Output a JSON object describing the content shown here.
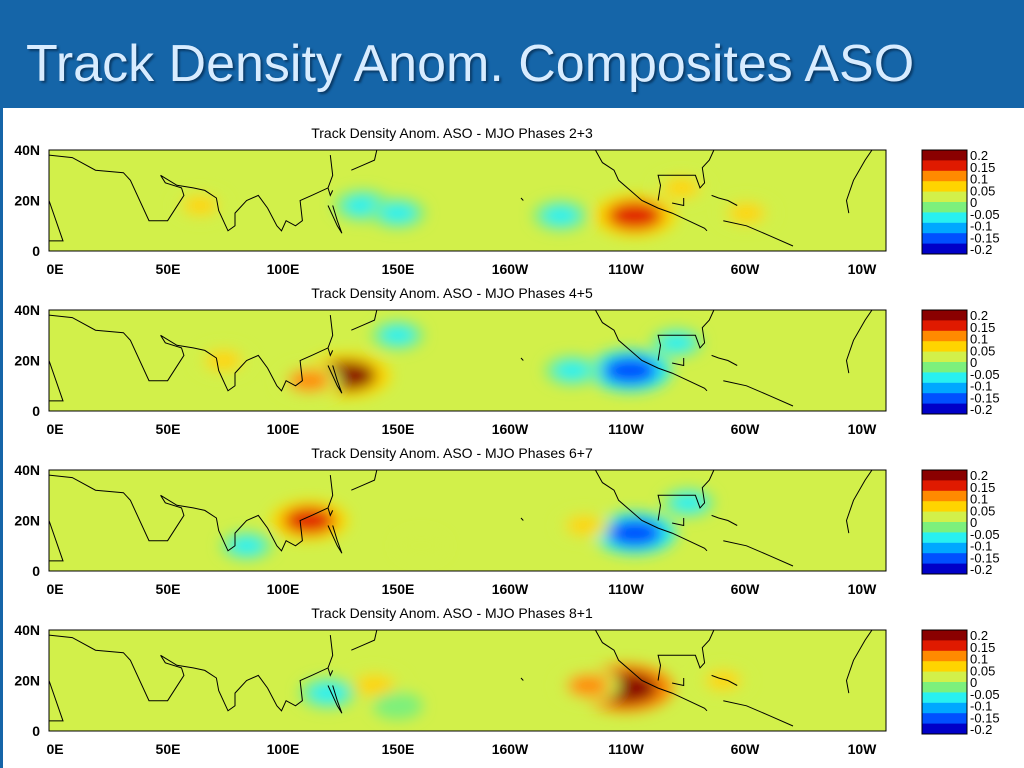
{
  "slide": {
    "title": "Track Density Anom. Composites ASO"
  },
  "colors": {
    "slide_bar": "#1565a8",
    "colormap": [
      "#0000c8",
      "#0050ff",
      "#00a8ff",
      "#28f0f0",
      "#7cf07c",
      "#d2f04a",
      "#ffd400",
      "#ff8a00",
      "#e01a00",
      "#8a0000"
    ]
  },
  "chart_data": [
    {
      "type": "heatmap",
      "title": "Track Density Anom. ASO - MJO Phases 2+3",
      "x_ticks": [
        "0E",
        "50E",
        "100E",
        "150E",
        "160W",
        "110W",
        "60W",
        "10W"
      ],
      "y_ticks": [
        "40N",
        "20N",
        "0"
      ],
      "colorbar": [
        "0.2",
        "0.15",
        "0.1",
        "0.05",
        "0",
        "-0.05",
        "-0.1",
        "-0.15",
        "-0.2"
      ],
      "ylim": [
        0,
        40
      ],
      "anomalies": [
        {
          "lon": 135,
          "lat": 18,
          "value": -0.06
        },
        {
          "lon": 150,
          "lat": 15,
          "value": -0.05
        },
        {
          "lon": 220,
          "lat": 14,
          "value": -0.05
        },
        {
          "lon": 252,
          "lat": 14,
          "value": 0.15
        },
        {
          "lon": 272,
          "lat": 25,
          "value": 0.05
        },
        {
          "lon": 300,
          "lat": 15,
          "value": 0.05
        },
        {
          "lon": 65,
          "lat": 18,
          "value": 0.04
        }
      ]
    },
    {
      "type": "heatmap",
      "title": "Track Density Anom. ASO - MJO Phases 4+5",
      "x_ticks": [
        "0E",
        "50E",
        "100E",
        "150E",
        "160W",
        "110W",
        "60W",
        "10W"
      ],
      "y_ticks": [
        "40N",
        "20N",
        "0"
      ],
      "colorbar": [
        "0.2",
        "0.15",
        "0.1",
        "0.05",
        "0",
        "-0.05",
        "-0.1",
        "-0.15",
        "-0.2"
      ],
      "ylim": [
        0,
        40
      ],
      "anomalies": [
        {
          "lon": 128,
          "lat": 14,
          "value": 0.17
        },
        {
          "lon": 112,
          "lat": 12,
          "value": 0.08
        },
        {
          "lon": 75,
          "lat": 20,
          "value": 0.05
        },
        {
          "lon": 250,
          "lat": 16,
          "value": -0.15
        },
        {
          "lon": 225,
          "lat": 16,
          "value": -0.05
        },
        {
          "lon": 150,
          "lat": 30,
          "value": -0.04
        },
        {
          "lon": 270,
          "lat": 27,
          "value": -0.04
        }
      ]
    },
    {
      "type": "heatmap",
      "title": "Track Density Anom. ASO - MJO Phases 6+7",
      "x_ticks": [
        "0E",
        "50E",
        "100E",
        "150E",
        "160W",
        "110W",
        "60W",
        "10W"
      ],
      "y_ticks": [
        "40N",
        "20N",
        "0"
      ],
      "colorbar": [
        "0.2",
        "0.15",
        "0.1",
        "0.05",
        "0",
        "-0.05",
        "-0.1",
        "-0.15",
        "-0.2"
      ],
      "ylim": [
        0,
        40
      ],
      "anomalies": [
        {
          "lon": 112,
          "lat": 20,
          "value": 0.13
        },
        {
          "lon": 252,
          "lat": 15,
          "value": -0.15
        },
        {
          "lon": 230,
          "lat": 18,
          "value": 0.04
        },
        {
          "lon": 160,
          "lat": 10,
          "value": 0.03
        },
        {
          "lon": 85,
          "lat": 10,
          "value": -0.04
        },
        {
          "lon": 275,
          "lat": 27,
          "value": -0.04
        }
      ]
    },
    {
      "type": "heatmap",
      "title": "Track Density Anom. ASO - MJO Phases 8+1",
      "x_ticks": [
        "0E",
        "50E",
        "100E",
        "150E",
        "160W",
        "110W",
        "60W",
        "10W"
      ],
      "y_ticks": [
        "40N",
        "20N",
        "0"
      ],
      "colorbar": [
        "0.2",
        "0.15",
        "0.1",
        "0.05",
        "0",
        "-0.05",
        "-0.1",
        "-0.15",
        "-0.2"
      ],
      "ylim": [
        0,
        40
      ],
      "anomalies": [
        {
          "lon": 248,
          "lat": 17,
          "value": 0.2
        },
        {
          "lon": 232,
          "lat": 18,
          "value": 0.08
        },
        {
          "lon": 140,
          "lat": 18,
          "value": 0.07
        },
        {
          "lon": 120,
          "lat": 15,
          "value": -0.06
        },
        {
          "lon": 150,
          "lat": 10,
          "value": -0.03
        },
        {
          "lon": 290,
          "lat": 20,
          "value": 0.04
        }
      ]
    }
  ]
}
